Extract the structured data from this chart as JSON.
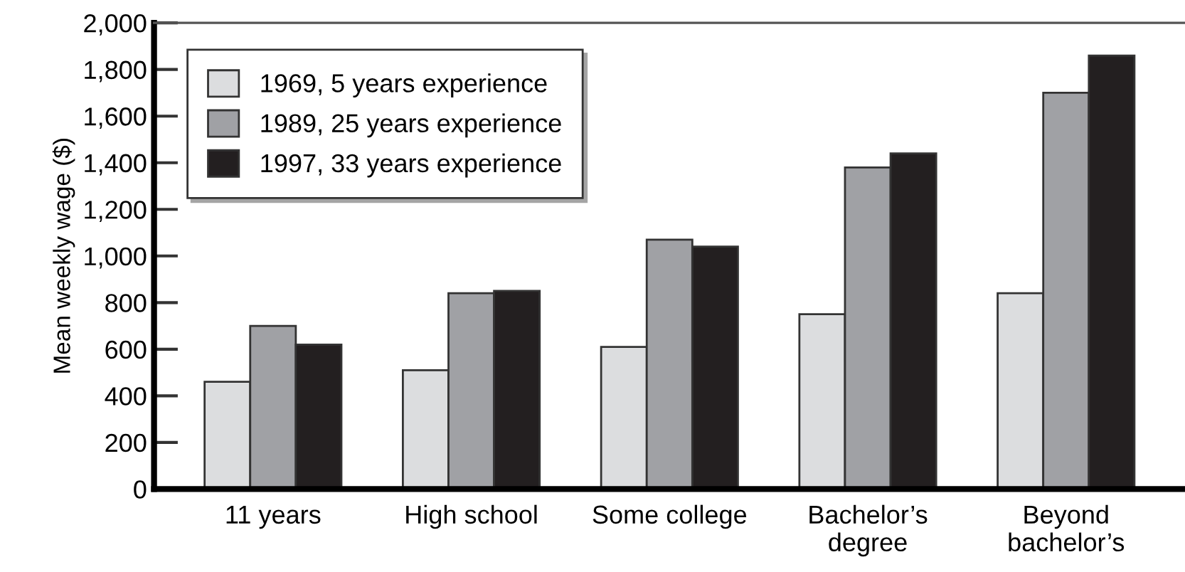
{
  "chart_data": {
    "type": "bar",
    "ylabel": "Mean weekly wage ($)",
    "categories": [
      "11 years",
      "High school",
      "Some college",
      "Bachelor’s\ndegree",
      "Beyond\nbachelor’s"
    ],
    "series": [
      {
        "name": "1969, 5 years experience",
        "color": "#dcdddf",
        "values": [
          460,
          510,
          610,
          750,
          840
        ]
      },
      {
        "name": "1989, 25 years experience",
        "color": "#a0a1a5",
        "values": [
          700,
          840,
          1070,
          1380,
          1700
        ]
      },
      {
        "name": "1997, 33 years experience",
        "color": "#231f20",
        "values": [
          620,
          850,
          1040,
          1440,
          1860
        ]
      }
    ],
    "ylim": [
      0,
      2000
    ],
    "yticks": [
      {
        "value": 0,
        "label": "0"
      },
      {
        "value": 200,
        "label": "200"
      },
      {
        "value": 400,
        "label": "400"
      },
      {
        "value": 600,
        "label": "600"
      },
      {
        "value": 800,
        "label": "800"
      },
      {
        "value": 1000,
        "label": "1,000"
      },
      {
        "value": 1200,
        "label": "1,200"
      },
      {
        "value": 1400,
        "label": "1,400"
      },
      {
        "value": 1600,
        "label": "1,600"
      },
      {
        "value": 1800,
        "label": "1,800"
      },
      {
        "value": 2000,
        "label": "2,000"
      }
    ],
    "grid": false,
    "legend": "top left"
  }
}
